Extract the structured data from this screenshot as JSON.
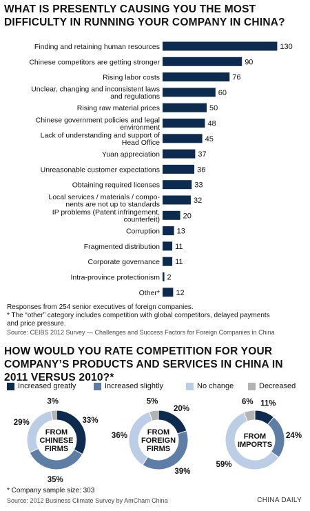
{
  "title1": "WHAT IS PRESENTLY CAUSING YOU THE MOST DIFFICULTY IN RUNNING YOUR COMPANY IN CHINA?",
  "chart_data": [
    {
      "type": "bar",
      "orientation": "horizontal",
      "categories": [
        [
          "Finding and retaining human resources"
        ],
        [
          "Chinese competitors are getting stronger"
        ],
        [
          "Rising labor costs"
        ],
        [
          "Unclear, changing and inconsistent laws",
          "and regulations"
        ],
        [
          "Rising raw material prices"
        ],
        [
          "Chinese government policies and legal",
          "environment"
        ],
        [
          "Lack of understanding and support of",
          "Head Office"
        ],
        [
          "Yuan appreciation"
        ],
        [
          "Unreasonable customer expectations"
        ],
        [
          "Obtaining required licenses"
        ],
        [
          "Local services / materials / compo-",
          "nents are not up to standards"
        ],
        [
          "IP problems (Patent infringement,",
          "counterfeit)"
        ],
        [
          "Corruption"
        ],
        [
          "Fragmented distribution"
        ],
        [
          "Corporate governance"
        ],
        [
          "Intra-province protectionism"
        ],
        [
          "Other*"
        ]
      ],
      "values": [
        130,
        90,
        76,
        60,
        50,
        48,
        45,
        37,
        36,
        33,
        32,
        20,
        13,
        11,
        11,
        2,
        12
      ],
      "bar_color": "#0d2a4f"
    },
    {
      "type": "pie",
      "donut": true,
      "center_label": [
        "FROM",
        "CHINESE",
        "FIRMS"
      ],
      "segments": [
        33,
        35,
        29,
        3
      ]
    },
    {
      "type": "pie",
      "donut": true,
      "center_label": [
        "FROM",
        "FOREIGN",
        "FIRMS"
      ],
      "segments": [
        20,
        39,
        36,
        5
      ]
    },
    {
      "type": "pie",
      "donut": true,
      "center_label": [
        "FROM",
        "IMPORTS"
      ],
      "segments": [
        11,
        24,
        59,
        6
      ]
    }
  ],
  "note1": "Responses from 254 senior executives of foreign companies.",
  "note2": "* The “other” category includes competition with global competitors, delayed payments",
  "note3": "and price pressure.",
  "source1": "Source: CEIBS 2012 Survey — Challenges and Success Factors for Foreign Companies in China",
  "title2": "HOW WOULD YOU RATE COMPETITION FOR YOUR COMPANY’S PRODUCTS AND SERVICES IN CHINA IN 2011 VERSUS 2010?*",
  "legend": [
    {
      "label": "Increased greatly",
      "color": "#0d2a4f"
    },
    {
      "label": "Increased slightly",
      "color": "#5e7ea6"
    },
    {
      "label": "No change",
      "color": "#bccde6"
    },
    {
      "label": "Decreased",
      "color": "#b3b3b3"
    }
  ],
  "footnote": "* Company sample size: 303",
  "source2": "Source: 2012 Business Climate Survey by AmCham China",
  "credit": "CHINA DAILY"
}
